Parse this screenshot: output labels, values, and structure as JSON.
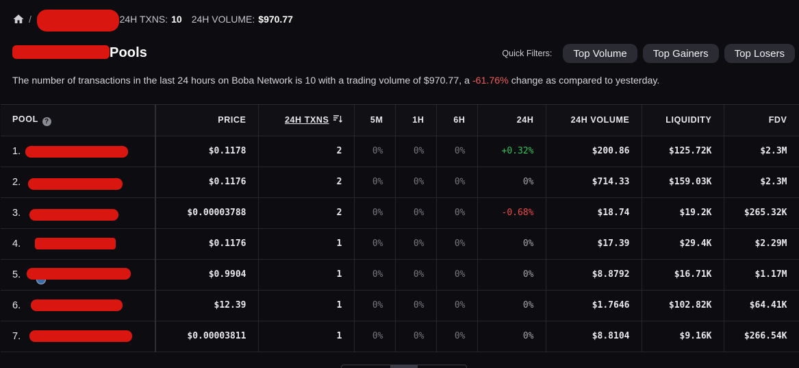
{
  "topbar": {
    "separator": "/",
    "dot": "·",
    "txns_label": "24H TXNS:",
    "txns_value": "10",
    "volume_label": "24H VOLUME:",
    "volume_value": "$970.77"
  },
  "title": "Pools",
  "filters": {
    "label": "Quick Filters:",
    "buttons": [
      "Top Volume",
      "Top Gainers",
      "Top Losers"
    ]
  },
  "description": {
    "before": "The number of transactions in the last 24 hours on Boba Network is 10 with a trading volume of $970.77, a ",
    "change": "-61.76%",
    "after": " change as compared to yesterday."
  },
  "table": {
    "headers": [
      "POOL",
      "PRICE",
      "24H TXNS",
      "5M",
      "1H",
      "6H",
      "24H",
      "24H VOLUME",
      "LIQUIDITY",
      "FDV"
    ],
    "rows": [
      {
        "rank": "1.",
        "price": "$0.1178",
        "txns": "2",
        "m5": "0%",
        "h1": "0%",
        "h6": "0%",
        "h24": "+0.32%",
        "volume": "$200.86",
        "liquidity": "$125.72K",
        "fdv": "$2.3M"
      },
      {
        "rank": "2.",
        "price": "$0.1176",
        "txns": "2",
        "m5": "0%",
        "h1": "0%",
        "h6": "0%",
        "h24": "0%",
        "volume": "$714.33",
        "liquidity": "$159.03K",
        "fdv": "$2.3M"
      },
      {
        "rank": "3.",
        "price": "$0.00003788",
        "txns": "2",
        "m5": "0%",
        "h1": "0%",
        "h6": "0%",
        "h24": "-0.68%",
        "volume": "$18.74",
        "liquidity": "$19.2K",
        "fdv": "$265.32K"
      },
      {
        "rank": "4.",
        "price": "$0.1176",
        "txns": "1",
        "m5": "0%",
        "h1": "0%",
        "h6": "0%",
        "h24": "0%",
        "volume": "$17.39",
        "liquidity": "$29.4K",
        "fdv": "$2.29M"
      },
      {
        "rank": "5.",
        "price": "$0.9904",
        "txns": "1",
        "m5": "0%",
        "h1": "0%",
        "h6": "0%",
        "h24": "0%",
        "volume": "$8.8792",
        "liquidity": "$16.71K",
        "fdv": "$1.17M"
      },
      {
        "rank": "6.",
        "price": "$12.39",
        "txns": "1",
        "m5": "0%",
        "h1": "0%",
        "h6": "0%",
        "h24": "0%",
        "volume": "$1.7646",
        "liquidity": "$102.82K",
        "fdv": "$64.41K"
      },
      {
        "rank": "7.",
        "price": "$0.00003811",
        "txns": "1",
        "m5": "0%",
        "h1": "0%",
        "h6": "0%",
        "h24": "0%",
        "volume": "$8.8104",
        "liquidity": "$9.16K",
        "fdv": "$266.54K"
      }
    ]
  },
  "colors": {
    "positive": "#2fc45a",
    "negative": "#f04747",
    "redaction": "#d9160f",
    "background": "#0d0d11",
    "button_bg": "#2a2b33"
  },
  "icons": [
    "home-icon",
    "help-icon",
    "sort-icon",
    "token-icon"
  ]
}
